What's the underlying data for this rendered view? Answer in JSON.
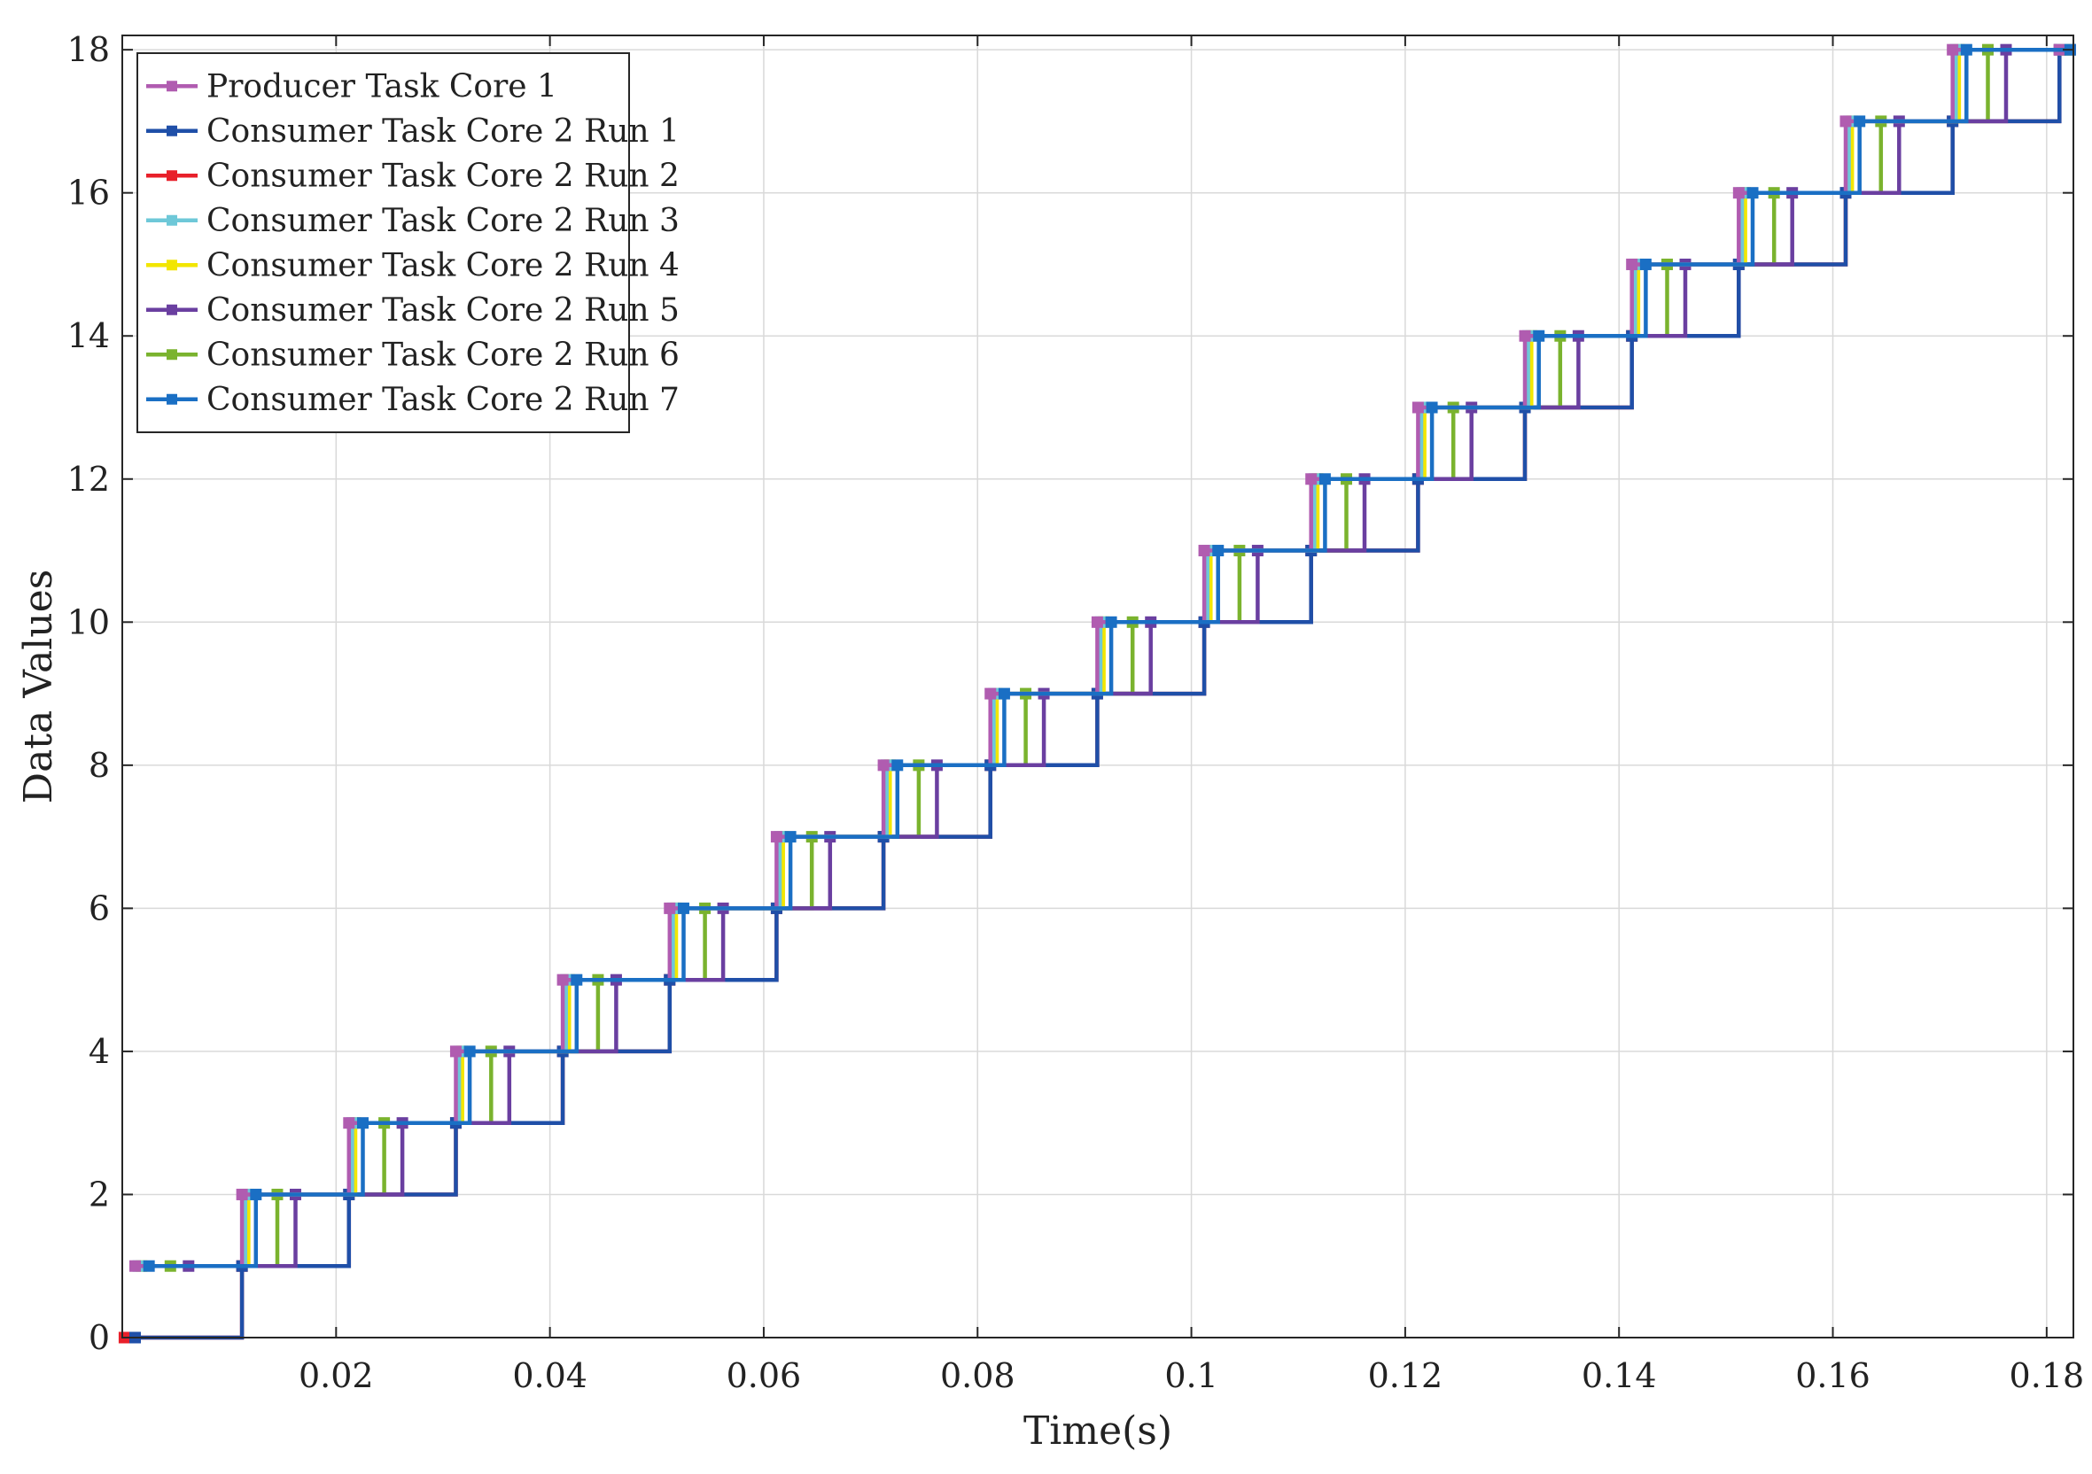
{
  "chart_data": {
    "type": "line",
    "step": true,
    "title": "",
    "xlabel": "Time(s)",
    "ylabel": "Data Values",
    "xlim": [
      0,
      0.1825
    ],
    "ylim": [
      0,
      18.2
    ],
    "xticks": [
      0.02,
      0.04,
      0.06,
      0.08,
      0.1,
      0.12,
      0.14,
      0.16,
      0.18
    ],
    "xtick_labels": [
      "0.02",
      "0.04",
      "0.06",
      "0.08",
      "0.1",
      "0.12",
      "0.14",
      "0.16",
      "0.18"
    ],
    "yticks": [
      0,
      2,
      4,
      6,
      8,
      10,
      12,
      14,
      16,
      18
    ],
    "ytick_labels": [
      "0",
      "2",
      "4",
      "6",
      "8",
      "10",
      "12",
      "14",
      "16",
      "18"
    ],
    "grid": true,
    "legend_position": "top-left",
    "series": [
      {
        "name": "Producer Task Core 1",
        "color": "#b05cb0",
        "x": [
          0.0012,
          0.0112,
          0.0212,
          0.0312,
          0.0412,
          0.0512,
          0.0612,
          0.0712,
          0.0812,
          0.0912,
          0.1012,
          0.1112,
          0.1212,
          0.1312,
          0.1412,
          0.1512,
          0.1612,
          0.1712,
          0.1812
        ],
        "y": [
          1,
          2,
          3,
          4,
          5,
          6,
          7,
          8,
          9,
          10,
          11,
          12,
          13,
          14,
          15,
          16,
          17,
          18,
          18
        ]
      },
      {
        "name": "Consumer Task Core 2 Run 1",
        "color": "#1f4fa8",
        "x": [
          0.0012,
          0.0112,
          0.0212,
          0.0312,
          0.0412,
          0.0512,
          0.0612,
          0.0712,
          0.0812,
          0.0912,
          0.1012,
          0.1112,
          0.1212,
          0.1312,
          0.1412,
          0.1512,
          0.1612,
          0.1712,
          0.1812
        ],
        "y": [
          0,
          1,
          2,
          3,
          4,
          5,
          6,
          7,
          8,
          9,
          10,
          11,
          12,
          13,
          14,
          15,
          16,
          17,
          18
        ]
      },
      {
        "name": "Consumer Task Core 2 Run 2",
        "color": "#e8202a",
        "x": [
          0.0002,
          0.0112,
          0.0212,
          0.0312,
          0.0412,
          0.0512,
          0.0612,
          0.0712,
          0.0812,
          0.0912,
          0.1012,
          0.1112,
          0.1212,
          0.1312,
          0.1412,
          0.1512,
          0.1612,
          0.1712,
          0.1812
        ],
        "y": [
          0,
          1,
          2,
          3,
          4,
          5,
          6,
          7,
          8,
          9,
          10,
          11,
          12,
          13,
          14,
          15,
          16,
          17,
          18
        ]
      },
      {
        "name": "Consumer Task Core 2 Run 3",
        "color": "#6ec8d8",
        "x": [
          0.0015,
          0.0115,
          0.0215,
          0.0315,
          0.0415,
          0.0515,
          0.0615,
          0.0715,
          0.0815,
          0.0915,
          0.1015,
          0.1115,
          0.1215,
          0.1315,
          0.1415,
          0.1515,
          0.1615,
          0.1715,
          0.1815
        ],
        "y": [
          1,
          2,
          3,
          4,
          5,
          6,
          7,
          8,
          9,
          10,
          11,
          12,
          13,
          14,
          15,
          16,
          17,
          18,
          18
        ]
      },
      {
        "name": "Consumer Task Core 2 Run 4",
        "color": "#f2e600",
        "x": [
          0.0018,
          0.0118,
          0.0218,
          0.0318,
          0.0418,
          0.0518,
          0.0618,
          0.0718,
          0.0818,
          0.0918,
          0.1018,
          0.1118,
          0.1218,
          0.1318,
          0.1418,
          0.1518,
          0.1618,
          0.1718,
          0.1818
        ],
        "y": [
          1,
          2,
          3,
          4,
          5,
          6,
          7,
          8,
          9,
          10,
          11,
          12,
          13,
          14,
          15,
          16,
          17,
          18,
          18
        ]
      },
      {
        "name": "Consumer Task Core 2 Run 5",
        "color": "#6a3fa0",
        "x": [
          0.0062,
          0.0162,
          0.0262,
          0.0362,
          0.0462,
          0.0562,
          0.0662,
          0.0762,
          0.0862,
          0.0962,
          0.1062,
          0.1162,
          0.1262,
          0.1362,
          0.1462,
          0.1562,
          0.1662,
          0.1762,
          0.1822
        ],
        "y": [
          1,
          2,
          3,
          4,
          5,
          6,
          7,
          8,
          9,
          10,
          11,
          12,
          13,
          14,
          15,
          16,
          17,
          18,
          18
        ]
      },
      {
        "name": "Consumer Task Core 2 Run 6",
        "color": "#7ab32e",
        "x": [
          0.0045,
          0.0145,
          0.0245,
          0.0345,
          0.0445,
          0.0545,
          0.0645,
          0.0745,
          0.0845,
          0.0945,
          0.1045,
          0.1145,
          0.1245,
          0.1345,
          0.1445,
          0.1545,
          0.1645,
          0.1745,
          0.1822
        ],
        "y": [
          1,
          2,
          3,
          4,
          5,
          6,
          7,
          8,
          9,
          10,
          11,
          12,
          13,
          14,
          15,
          16,
          17,
          18,
          18
        ]
      },
      {
        "name": "Consumer Task Core 2 Run 7",
        "color": "#1a6fc4",
        "x": [
          0.0025,
          0.0125,
          0.0225,
          0.0325,
          0.0425,
          0.0525,
          0.0625,
          0.0725,
          0.0825,
          0.0925,
          0.1025,
          0.1125,
          0.1225,
          0.1325,
          0.1425,
          0.1525,
          0.1625,
          0.1725,
          0.1822
        ],
        "y": [
          1,
          2,
          3,
          4,
          5,
          6,
          7,
          8,
          9,
          10,
          11,
          12,
          13,
          14,
          15,
          16,
          17,
          18,
          18
        ]
      }
    ]
  }
}
